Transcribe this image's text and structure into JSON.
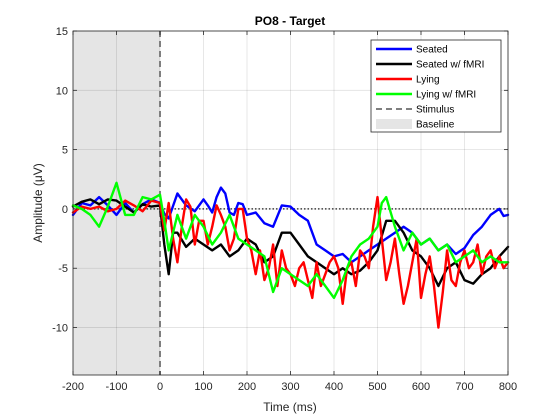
{
  "chart_data": {
    "type": "line",
    "title": "PO8 - Target",
    "xlabel": "Time (ms)",
    "ylabel": "Amplitude (μV)",
    "xlim": [
      -200,
      800
    ],
    "ylim": [
      -14,
      15
    ],
    "xticks": [
      -200,
      -100,
      0,
      100,
      200,
      300,
      400,
      500,
      600,
      700,
      800
    ],
    "yticks": [
      -10,
      -5,
      0,
      5,
      10,
      15
    ],
    "grid": true,
    "legend_position": "top-right",
    "baseline_window": [
      -200,
      0
    ],
    "stimulus_time": 0,
    "zero_line": 0,
    "legend": [
      {
        "label": "Seated",
        "kind": "line",
        "color": "#0000ff"
      },
      {
        "label": "Seated w/ fMRI",
        "kind": "line",
        "color": "#000000"
      },
      {
        "label": "Lying",
        "kind": "line",
        "color": "#ff0000"
      },
      {
        "label": "Lying w/ fMRI",
        "kind": "line",
        "color": "#00ff00"
      },
      {
        "label": "Stimulus",
        "kind": "dashed",
        "color": "#7f7f7f"
      },
      {
        "label": "Baseline",
        "kind": "patch",
        "color": "#e5e5e5"
      }
    ],
    "series": [
      {
        "name": "Seated",
        "color": "#0000ff",
        "x": [
          -200,
          -180,
          -160,
          -140,
          -120,
          -100,
          -80,
          -60,
          -40,
          -20,
          0,
          10,
          20,
          40,
          60,
          80,
          100,
          110,
          120,
          130,
          140,
          150,
          160,
          170,
          180,
          190,
          200,
          220,
          240,
          260,
          280,
          300,
          320,
          340,
          360,
          380,
          400,
          420,
          440,
          460,
          480,
          500,
          520,
          540,
          560,
          580,
          600,
          620,
          640,
          660,
          680,
          700,
          720,
          740,
          760,
          780,
          790,
          800
        ],
        "y": [
          -0.5,
          0.5,
          0.3,
          1.0,
          0.3,
          -0.5,
          0.5,
          -0.3,
          0.4,
          0.8,
          0.5,
          -0.4,
          -0.8,
          1.3,
          0.3,
          -0.2,
          0.8,
          0.3,
          -0.3,
          1.0,
          1.8,
          1.3,
          -0.3,
          -0.5,
          0.5,
          0.4,
          -0.5,
          -0.3,
          -1.2,
          -1.5,
          0.3,
          0.2,
          -0.5,
          -1.0,
          -3.0,
          -3.5,
          -4.0,
          -3.8,
          -4.5,
          -4.0,
          -3.5,
          -3.0,
          -2.5,
          -2.0,
          -1.5,
          -2.0,
          -3.0,
          -2.5,
          -3.5,
          -3.0,
          -3.8,
          -3.3,
          -2.2,
          -1.5,
          -0.5,
          0,
          -0.6,
          -0.5
        ]
      },
      {
        "name": "Seated w/ fMRI",
        "color": "#000000",
        "x": [
          -200,
          -180,
          -160,
          -140,
          -120,
          -100,
          -80,
          -60,
          -40,
          -20,
          0,
          10,
          20,
          30,
          40,
          60,
          80,
          100,
          120,
          140,
          160,
          180,
          200,
          220,
          240,
          260,
          280,
          300,
          320,
          340,
          360,
          380,
          400,
          420,
          440,
          460,
          480,
          500,
          520,
          540,
          560,
          580,
          600,
          620,
          640,
          660,
          680,
          700,
          720,
          740,
          760,
          780,
          800
        ],
        "y": [
          0.2,
          0.6,
          0.8,
          0.4,
          0.8,
          0.7,
          0.2,
          -0.3,
          0.4,
          0.2,
          0.3,
          -3.0,
          -5.5,
          -2.0,
          -2.0,
          -3.2,
          -2.5,
          -3.0,
          -3.5,
          -3.0,
          -4.0,
          -3.5,
          -2.5,
          -3.0,
          -4.5,
          -4.0,
          -2.0,
          -2.0,
          -3.0,
          -4.0,
          -4.5,
          -5.0,
          -5.5,
          -5.0,
          -5.5,
          -5.2,
          -4.5,
          -3.5,
          -1.0,
          -1.0,
          -2.0,
          -3.5,
          -4.0,
          -5.0,
          -6.5,
          -5.0,
          -4.5,
          -6.0,
          -6.3,
          -5.5,
          -5.0,
          -4.0,
          -3.2
        ]
      },
      {
        "name": "Lying",
        "color": "#ff0000",
        "x": [
          -200,
          -180,
          -160,
          -140,
          -120,
          -100,
          -80,
          -60,
          -40,
          -20,
          0,
          10,
          20,
          30,
          40,
          50,
          60,
          70,
          80,
          90,
          100,
          110,
          120,
          130,
          140,
          150,
          160,
          170,
          180,
          190,
          200,
          210,
          220,
          230,
          240,
          250,
          260,
          270,
          280,
          290,
          300,
          310,
          320,
          330,
          340,
          350,
          360,
          370,
          380,
          390,
          400,
          410,
          420,
          430,
          440,
          450,
          460,
          470,
          480,
          490,
          500,
          510,
          520,
          530,
          540,
          550,
          560,
          570,
          580,
          590,
          600,
          610,
          620,
          630,
          640,
          650,
          660,
          670,
          680,
          690,
          700,
          710,
          720,
          730,
          740,
          750,
          760,
          770,
          780,
          790,
          800
        ],
        "y": [
          -0.3,
          0.2,
          0,
          0.2,
          -0.2,
          0,
          0.7,
          0.3,
          -0.2,
          0.7,
          0.5,
          -1.8,
          0.5,
          -2.5,
          -4.5,
          -1.5,
          0.8,
          0.2,
          -3.0,
          -1.0,
          -1.0,
          -3.0,
          -1.5,
          0.3,
          -0.5,
          -1.5,
          -3.5,
          -2.5,
          0,
          0,
          -2.5,
          -3.5,
          -5.5,
          -3.5,
          -6.0,
          -5.0,
          -3.0,
          -6.5,
          -3.5,
          -5.0,
          -5.5,
          -6.5,
          -5.0,
          -4.5,
          -6.0,
          -7.5,
          -4.5,
          -6.5,
          -5.5,
          -4.5,
          -4.0,
          -5.0,
          -8.0,
          -5.0,
          -4.5,
          -6.5,
          -3.5,
          -4.0,
          -5.0,
          -1.5,
          1.0,
          -2.5,
          -6.0,
          -4.5,
          -2.5,
          -5.5,
          -8.0,
          -6.5,
          -4.5,
          -2.5,
          -7.5,
          -5.5,
          -4.0,
          -6.5,
          -10.0,
          -7.0,
          -3.5,
          -6.0,
          -6.5,
          -4.5,
          -3.5,
          -5.0,
          -4.5,
          -3.0,
          -5.5,
          -4.0,
          -3.5,
          -5.0,
          -4.0,
          -5.0,
          -4.5
        ]
      },
      {
        "name": "Lying w/ fMRI",
        "color": "#00ff00",
        "x": [
          -200,
          -180,
          -160,
          -140,
          -120,
          -100,
          -80,
          -60,
          -40,
          -20,
          0,
          10,
          20,
          40,
          60,
          80,
          100,
          120,
          140,
          160,
          180,
          200,
          220,
          240,
          260,
          280,
          300,
          320,
          340,
          360,
          380,
          400,
          420,
          440,
          460,
          480,
          500,
          510,
          520,
          540,
          560,
          580,
          600,
          620,
          640,
          660,
          680,
          700,
          720,
          740,
          760,
          780,
          800
        ],
        "y": [
          0.3,
          0,
          -0.5,
          -1.5,
          0.2,
          2.2,
          -0.5,
          -0.5,
          1.0,
          0.8,
          1.2,
          -1.0,
          -3.5,
          -0.5,
          -2.5,
          -0.5,
          -1.5,
          -3.0,
          -2.0,
          -0.5,
          -2.5,
          -3.0,
          -3.5,
          -4.0,
          -7.0,
          -5.0,
          -5.5,
          -6.0,
          -6.5,
          -5.5,
          -6.5,
          -7.5,
          -6.0,
          -4.0,
          -3.0,
          -2.5,
          -1.5,
          0.5,
          1.0,
          -1.5,
          -3.5,
          -2.0,
          -3.0,
          -2.5,
          -3.5,
          -3.0,
          -4.5,
          -4.0,
          -3.5,
          -4.5,
          -4.0,
          -4.5,
          -4.5
        ]
      }
    ]
  }
}
